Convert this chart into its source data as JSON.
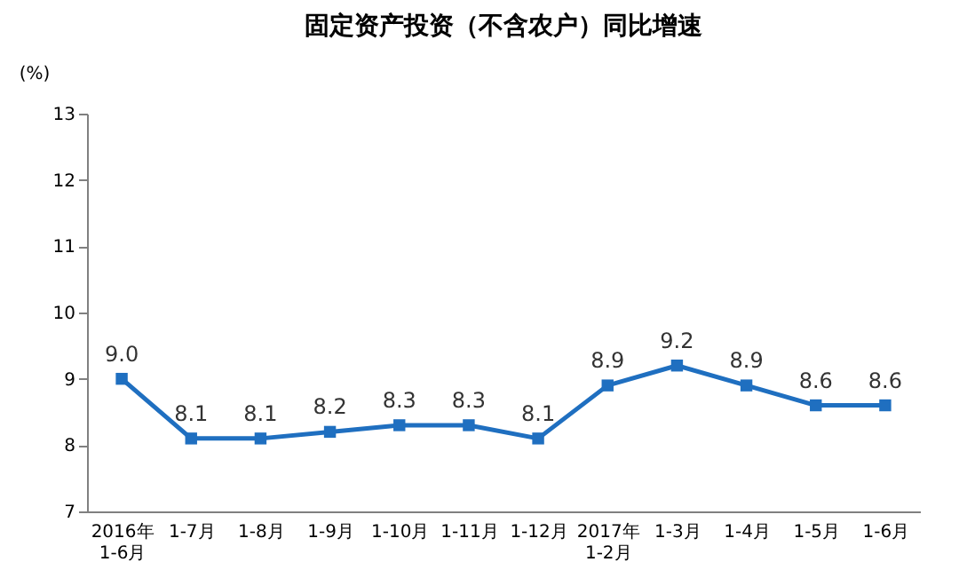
{
  "chart_data": {
    "type": "line",
    "title": "固定资产投资（不含农户）同比增速",
    "ylabel": "(%)",
    "categories": [
      "2016年\n1-6月",
      "1-7月",
      "1-8月",
      "1-9月",
      "1-10月",
      "1-11月",
      "1-12月",
      "2017年\n1-2月",
      "1-3月",
      "1-4月",
      "1-5月",
      "1-6月"
    ],
    "series": [
      {
        "color": "#1f6fc0",
        "values": [
          9.0,
          8.1,
          8.1,
          8.2,
          8.3,
          8.3,
          8.1,
          8.9,
          9.2,
          8.9,
          8.6,
          8.6
        ],
        "value_labels": [
          "9.0",
          "8.1",
          "8.1",
          "8.2",
          "8.3",
          "8.3",
          "8.1",
          "8.9",
          "9.2",
          "8.9",
          "8.6",
          "8.6"
        ]
      }
    ],
    "ylim": [
      7,
      13
    ],
    "yticks": [
      7,
      8,
      9,
      10,
      11,
      12,
      13
    ],
    "grid": false,
    "marker": "square",
    "line_style": "solid"
  }
}
